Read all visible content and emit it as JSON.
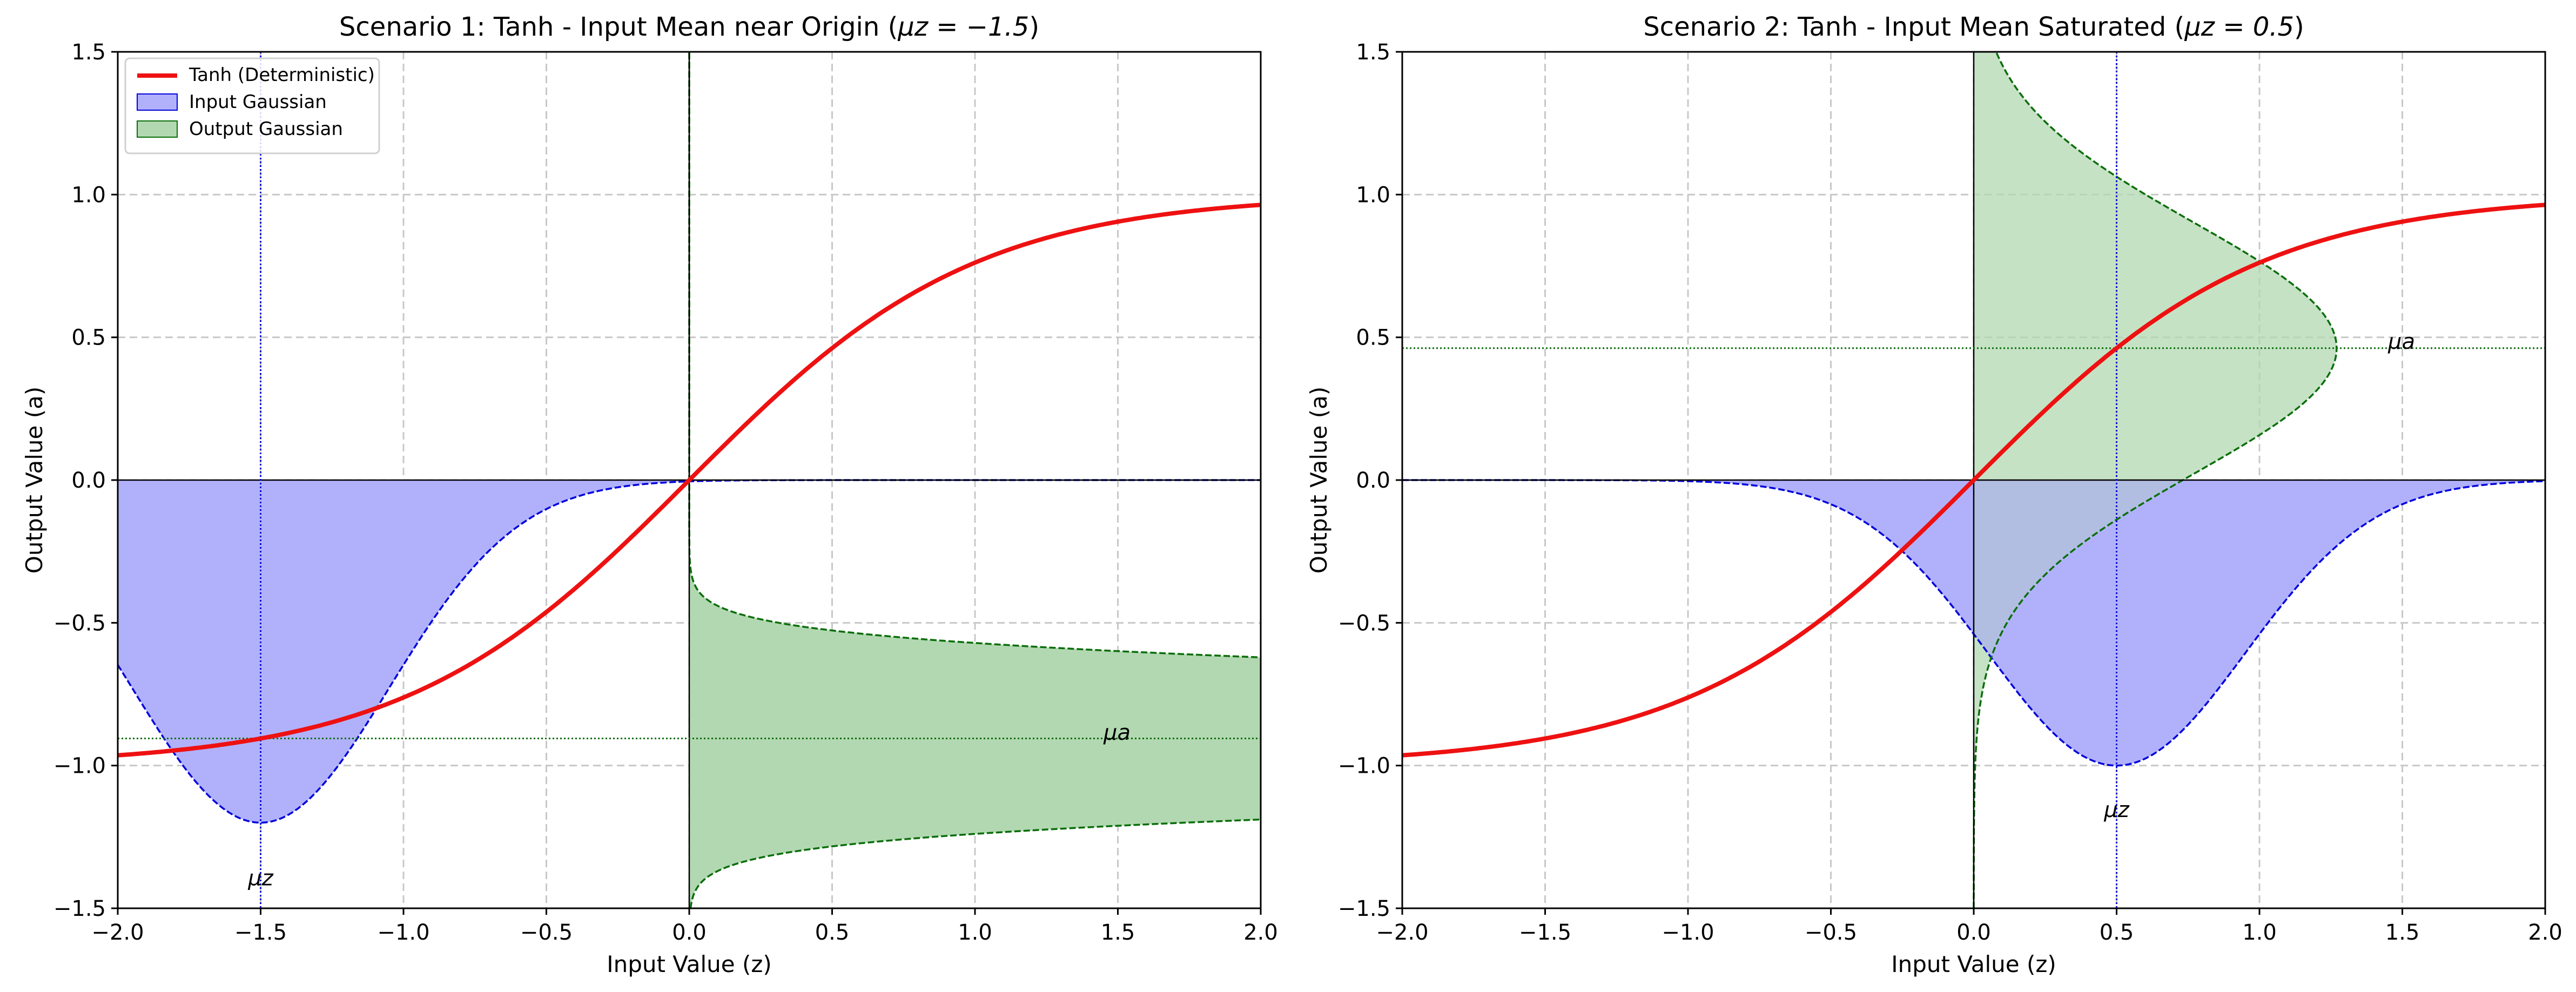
{
  "colors": {
    "tanh": "#ee1111",
    "input": "#0000dd",
    "input_fill": "#b1b1fb",
    "output": "#0a6e0a",
    "output_fill": "#b2d8b2",
    "grid": "#c8c8c8",
    "axis": "#000000"
  },
  "chart_data": [
    {
      "type": "line",
      "title": "Scenario 1: Tanh - Input Mean near Origin (",
      "title_math": "μz = −1.5",
      "title_close": ")",
      "xlabel": "Input Value (z)",
      "ylabel": "Output Value (a)",
      "xlim": [
        -2.0,
        2.0
      ],
      "ylim": [
        -1.5,
        1.5
      ],
      "xticks": [
        -2.0,
        -1.5,
        -1.0,
        -0.5,
        0.0,
        0.5,
        1.0,
        1.5,
        2.0
      ],
      "xtick_labels": [
        "−2.0",
        "−1.5",
        "−1.0",
        "−0.5",
        "0.0",
        "0.5",
        "1.0",
        "1.5",
        "2.0"
      ],
      "yticks": [
        -1.5,
        -1.0,
        -0.5,
        0.0,
        0.5,
        1.0,
        1.5
      ],
      "ytick_labels": [
        "−1.5",
        "−1.0",
        "−0.5",
        "0.0",
        "0.5",
        "1.0",
        "1.5"
      ],
      "grid": true,
      "legend": {
        "position": "top-left",
        "entries": [
          "Tanh (Deterministic)",
          "Input Gaussian",
          "Output Gaussian"
        ]
      },
      "input_mean": -1.5,
      "input_std": 0.45,
      "input_peak_height": -1.2,
      "output_mean": -0.905,
      "output_std": 0.15,
      "output_peak_width": 12.0,
      "output_x_offset": 0.0,
      "annotation_mu_z": "μz",
      "annotation_mu_a": "μa",
      "mu_z_label_xy": [
        -1.5,
        -1.42
      ],
      "mu_a_label_xy": [
        1.45,
        -0.91
      ]
    },
    {
      "type": "line",
      "title": "Scenario 2: Tanh - Input Mean Saturated (",
      "title_math": "μz = 0.5",
      "title_close": ")",
      "xlabel": "Input Value (z)",
      "ylabel": "Output Value (a)",
      "xlim": [
        -2.0,
        2.0
      ],
      "ylim": [
        -1.5,
        1.5
      ],
      "xticks": [
        -2.0,
        -1.5,
        -1.0,
        -0.5,
        0.0,
        0.5,
        1.0,
        1.5,
        2.0
      ],
      "xtick_labels": [
        "−2.0",
        "−1.5",
        "−1.0",
        "−0.5",
        "0.0",
        "0.5",
        "1.0",
        "1.5",
        "2.0"
      ],
      "yticks": [
        -1.5,
        -1.0,
        -0.5,
        0.0,
        0.5,
        1.0,
        1.5
      ],
      "ytick_labels": [
        "−1.5",
        "−1.0",
        "−0.5",
        "0.0",
        "0.5",
        "1.0",
        "1.5"
      ],
      "grid": true,
      "input_mean": 0.5,
      "input_std": 0.45,
      "input_peak_height": -1.0,
      "output_mean": 0.462,
      "output_std": 0.44,
      "output_peak_width": 1.27,
      "output_x_offset": 0.0,
      "annotation_mu_z": "μz",
      "annotation_mu_a": "μa",
      "mu_z_label_xy": [
        0.5,
        -1.18
      ],
      "mu_a_label_xy": [
        1.45,
        0.46
      ]
    }
  ]
}
